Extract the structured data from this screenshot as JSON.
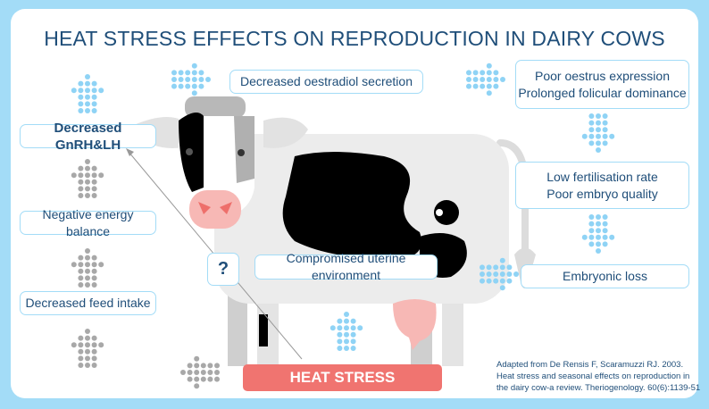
{
  "title": "HEAT STRESS EFFECTS ON REPRODUCTION IN DAIRY COWS",
  "boxes": {
    "oestradiol": "Decreased oestradiol secretion",
    "oestrus_1": "Poor oestrus expression",
    "oestrus_2": "Prolonged folicular dominance",
    "gnrh": "Decreased GnRH&LH",
    "fert_1": "Low fertilisation rate",
    "fert_2": "Poor embryo quality",
    "energy": "Negative energy balance",
    "uterine": "Compromised uterine environment",
    "embryonic": "Embryonic loss",
    "feed": "Decreased feed intake",
    "question": "?"
  },
  "heat_stress": "HEAT STRESS",
  "citation": {
    "line1": "Adapted from De Rensis F, Scaramuzzi RJ. 2003.",
    "line2": "Heat stress and seasonal effects on reproduction in",
    "line3": "the dairy cow-a review. Theriogenology. 60(6):1139-51"
  },
  "colors": {
    "accent_blue": "#a3dcf7",
    "dark_blue": "#1f4e79",
    "heat_red": "#f07470",
    "dot_gray": "#a8a8a8",
    "dot_blue": "#8fd3f5"
  },
  "arrows": [
    {
      "dir": "up",
      "color": "blue"
    },
    {
      "dir": "up",
      "color": "gray"
    },
    {
      "dir": "up",
      "color": "gray"
    },
    {
      "dir": "up",
      "color": "gray"
    },
    {
      "dir": "right",
      "color": "blue"
    },
    {
      "dir": "right",
      "color": "blue"
    },
    {
      "dir": "down",
      "color": "blue"
    },
    {
      "dir": "down",
      "color": "blue"
    },
    {
      "dir": "right",
      "color": "blue"
    },
    {
      "dir": "up",
      "color": "blue"
    },
    {
      "dir": "left",
      "color": "gray"
    }
  ]
}
